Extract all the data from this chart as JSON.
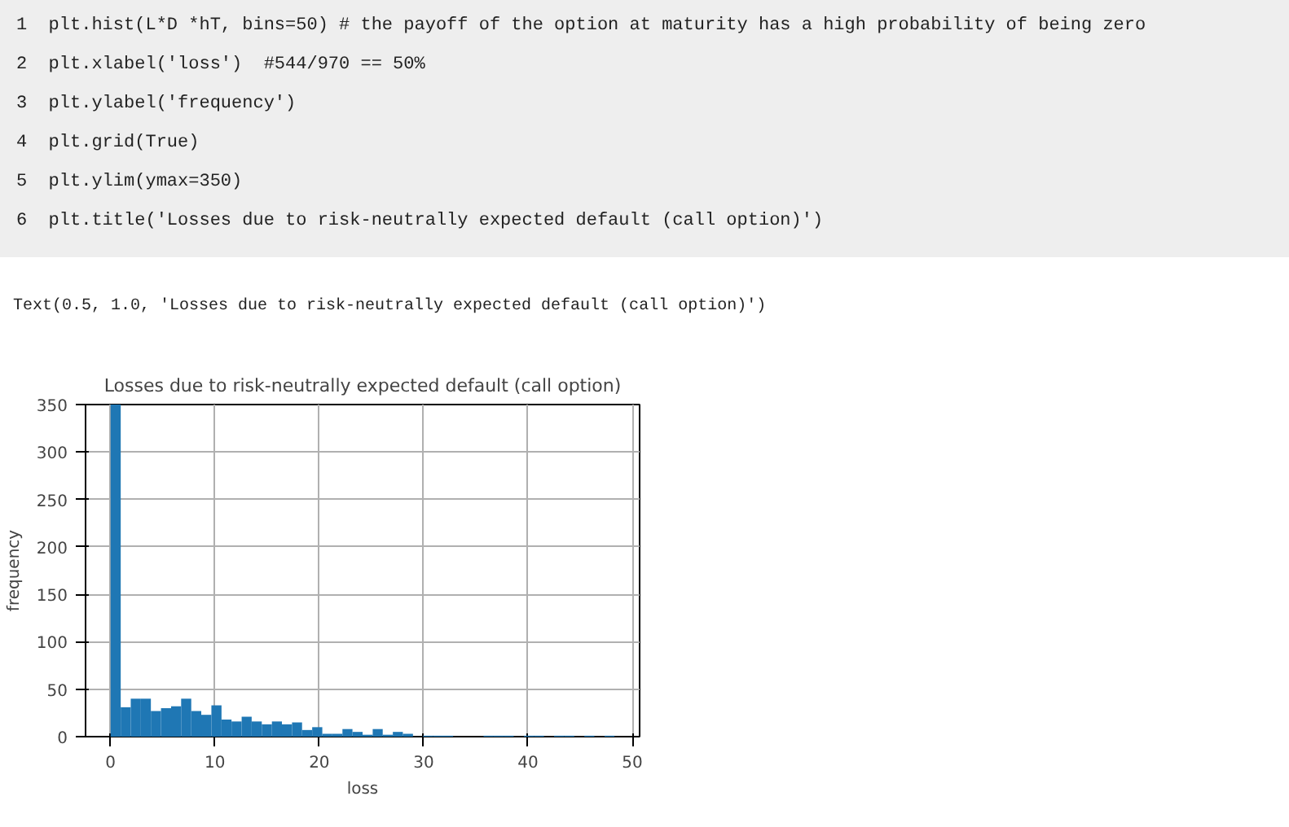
{
  "chart_data": {
    "type": "histogram",
    "title": "Losses due to risk-neutrally expected default (call option)",
    "xlabel": "loss",
    "ylabel": "frequency",
    "bins": [
      0,
      0.97,
      1.93,
      2.9,
      3.86,
      4.83,
      5.8,
      6.76,
      7.73,
      8.69,
      9.66,
      10.63,
      11.59,
      12.56,
      13.52,
      14.49,
      15.46,
      16.42,
      17.39,
      18.35,
      19.32,
      20.29,
      21.25,
      22.22,
      23.18,
      24.15,
      25.12,
      26.08,
      27.05,
      28.01,
      28.98,
      29.95,
      30.91,
      31.88,
      32.84,
      33.81,
      34.78,
      35.74,
      36.71,
      37.67,
      38.64,
      39.61,
      40.57,
      41.54,
      42.5,
      43.47,
      44.44,
      45.4,
      46.37,
      47.33,
      48.3
    ],
    "values": [
      350,
      31,
      40,
      40,
      27,
      30,
      32,
      40,
      27,
      23,
      33,
      18,
      16,
      21,
      16,
      13,
      16,
      13,
      15,
      7,
      10,
      3,
      3,
      8,
      5,
      2,
      8,
      2,
      5,
      3,
      0,
      1,
      1,
      1,
      0,
      0,
      0,
      1,
      1,
      1,
      0,
      1,
      1,
      0,
      1,
      1,
      0,
      1,
      0,
      1
    ],
    "color": "#1f77b4",
    "xlim": [
      -2.4,
      50.7
    ],
    "ylim": [
      0,
      350
    ],
    "xticks": [
      0,
      10,
      20,
      30,
      40,
      50
    ],
    "yticks": [
      0,
      50,
      100,
      150,
      200,
      250,
      300,
      350
    ],
    "grid": true,
    "annotations": [
      "1  plt.hist(L*D *hT, bins=50) # the payoff of the option at maturity has a high probability of being zero",
      "2  plt.xlabel('loss')  #544/970 == 50%",
      "3  plt.ylabel('frequency')",
      "4  plt.grid(True)",
      "5  plt.ylim(ymax=350)",
      "6  plt.title('Losses due to risk-neutrally expected default (call option)')",
      "Text(0.5, 1.0, 'Losses due to risk-neutrally expected default (call option)')"
    ]
  }
}
